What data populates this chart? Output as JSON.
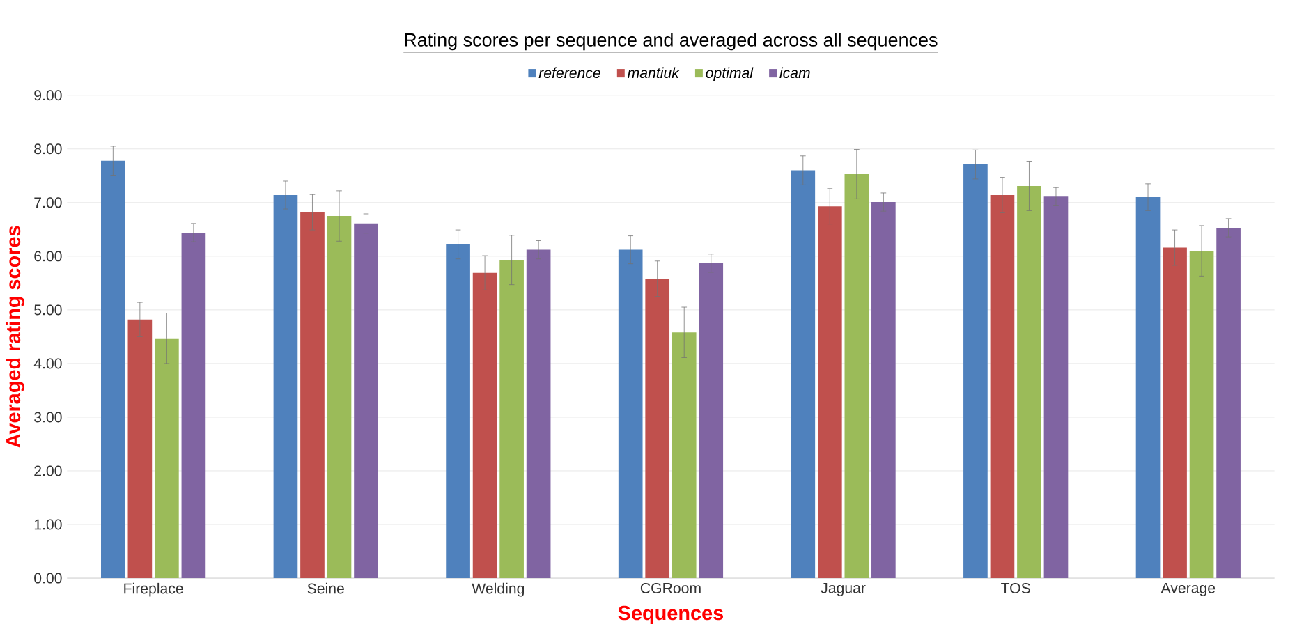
{
  "chart_data": {
    "type": "bar",
    "title": "Rating scores per sequence and averaged across all sequences",
    "xlabel": "Sequences",
    "ylabel": "Averaged rating scores",
    "categories": [
      "Fireplace",
      "Seine",
      "Welding",
      "CGRoom",
      "Jaguar",
      "TOS",
      "Average"
    ],
    "series": [
      {
        "name": "reference",
        "color": "#4f81bd",
        "values": [
          7.78,
          7.14,
          6.22,
          6.12,
          7.6,
          7.71,
          7.1
        ],
        "errors": [
          0.27,
          0.26,
          0.27,
          0.26,
          0.27,
          0.27,
          0.25
        ]
      },
      {
        "name": "mantiuk",
        "color": "#c0504d",
        "values": [
          4.82,
          6.82,
          5.69,
          5.58,
          6.93,
          7.14,
          6.16
        ],
        "errors": [
          0.32,
          0.33,
          0.32,
          0.33,
          0.33,
          0.33,
          0.33
        ]
      },
      {
        "name": "optimal",
        "color": "#9bbb59",
        "values": [
          4.47,
          6.75,
          5.93,
          4.58,
          7.53,
          7.31,
          6.1
        ],
        "errors": [
          0.47,
          0.47,
          0.46,
          0.47,
          0.46,
          0.46,
          0.47
        ]
      },
      {
        "name": "icam",
        "color": "#8064a2",
        "values": [
          6.44,
          6.61,
          6.12,
          5.87,
          7.01,
          7.11,
          6.53
        ],
        "errors": [
          0.17,
          0.18,
          0.17,
          0.17,
          0.17,
          0.17,
          0.17
        ]
      }
    ],
    "ylim": [
      0,
      9
    ],
    "yticks": [
      {
        "value": 0,
        "label": "0.00"
      },
      {
        "value": 1,
        "label": "1.00"
      },
      {
        "value": 2,
        "label": "2.00"
      },
      {
        "value": 3,
        "label": "3.00"
      },
      {
        "value": 4,
        "label": "4.00"
      },
      {
        "value": 5,
        "label": "5.00"
      },
      {
        "value": 6,
        "label": "6.00"
      },
      {
        "value": 7,
        "label": "7.00"
      },
      {
        "value": 8,
        "label": "8.00"
      },
      {
        "value": 9,
        "label": "9.00"
      }
    ],
    "grid": "y",
    "legend": "top"
  }
}
